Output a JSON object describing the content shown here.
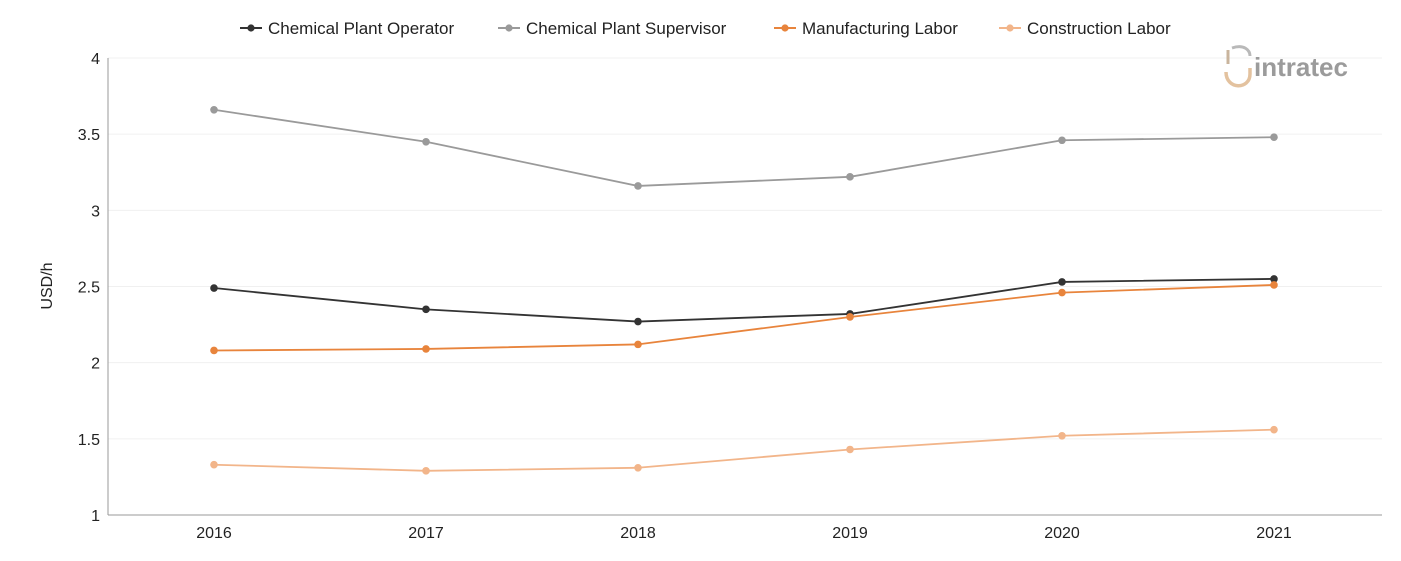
{
  "chart_data": {
    "type": "line",
    "categories": [
      "2016",
      "2017",
      "2018",
      "2019",
      "2020",
      "2021"
    ],
    "ylabel": "USD/h",
    "ylim": [
      1,
      4
    ],
    "yticks": [
      "1",
      "1.5",
      "2",
      "2.5",
      "3",
      "3.5",
      "4"
    ],
    "grid": "horizontal",
    "legend_position": "top-center",
    "series": [
      {
        "name": "Chemical Plant Operator",
        "color": "#333333",
        "values": [
          2.49,
          2.35,
          2.27,
          2.32,
          2.53,
          2.55
        ]
      },
      {
        "name": "Chemical Plant Supervisor",
        "color": "#9a9a9a",
        "values": [
          3.66,
          3.45,
          3.16,
          3.22,
          3.46,
          3.48
        ]
      },
      {
        "name": "Manufacturing Labor",
        "color": "#e8843c",
        "values": [
          2.08,
          2.09,
          2.12,
          2.3,
          2.46,
          2.51
        ]
      },
      {
        "name": "Construction Labor",
        "color": "#f2b58a",
        "values": [
          1.33,
          1.29,
          1.31,
          1.43,
          1.52,
          1.56
        ]
      }
    ]
  },
  "logo": {
    "text": "intratec",
    "icon": "intratec-logo-icon"
  }
}
